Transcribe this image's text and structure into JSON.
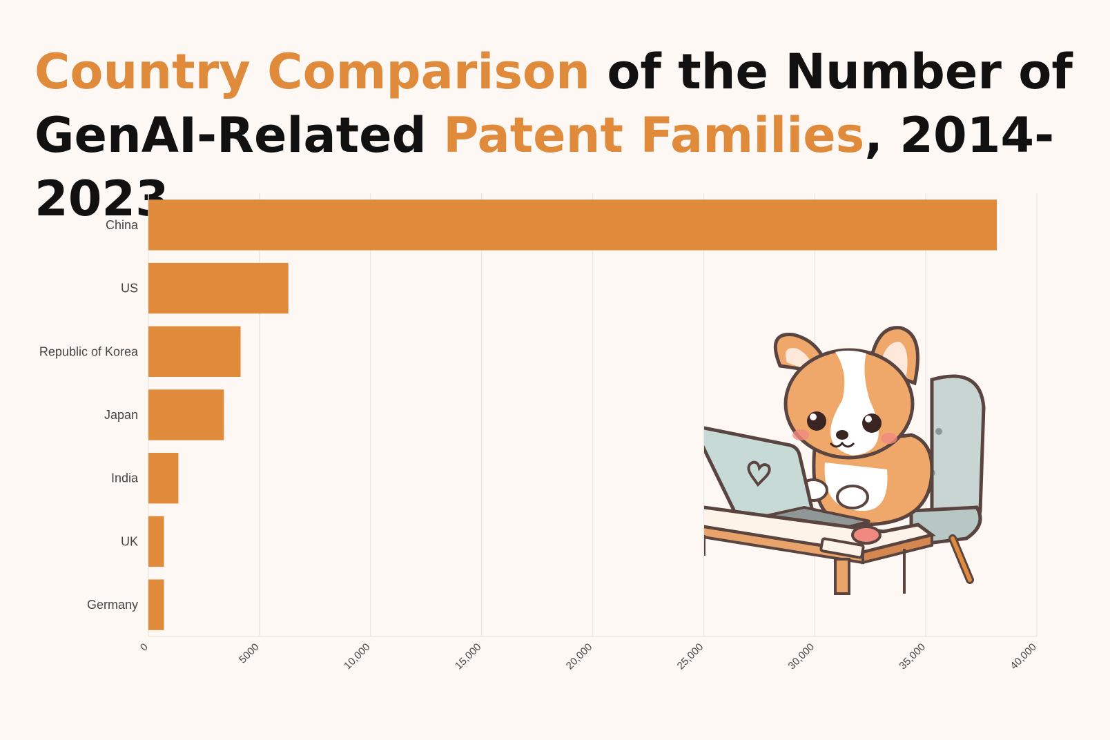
{
  "title": {
    "line1_part1": "Country Comparison",
    "line1_part2": " of the Number of",
    "line2_part1": "GenAI-Related ",
    "line2_part2": "Patent Families",
    "line2_part3": ", 2014-2023"
  },
  "colors": {
    "accent": "#e08a3c",
    "bar": "#e08a3c",
    "text": "#111111",
    "grid": "#ece7e2",
    "background": "#fdf8f4"
  },
  "chart_data": {
    "type": "bar",
    "orientation": "horizontal",
    "categories": [
      "China",
      "US",
      "Republic of Korea",
      "Japan",
      "India",
      "UK",
      "Germany"
    ],
    "values": [
      38200,
      6300,
      4150,
      3400,
      1350,
      700,
      700
    ],
    "xlim": [
      0,
      40000
    ],
    "xticks": [
      0,
      5000,
      10000,
      15000,
      20000,
      25000,
      30000,
      35000,
      40000
    ],
    "xtick_labels": [
      "0",
      "5000",
      "10,000",
      "15,000",
      "20,000",
      "25,000",
      "30,000",
      "35,000",
      "40,000"
    ],
    "xlabel": "",
    "ylabel": "",
    "grid": true
  },
  "illustration": {
    "icon": "corgi-laptop-illustration"
  }
}
